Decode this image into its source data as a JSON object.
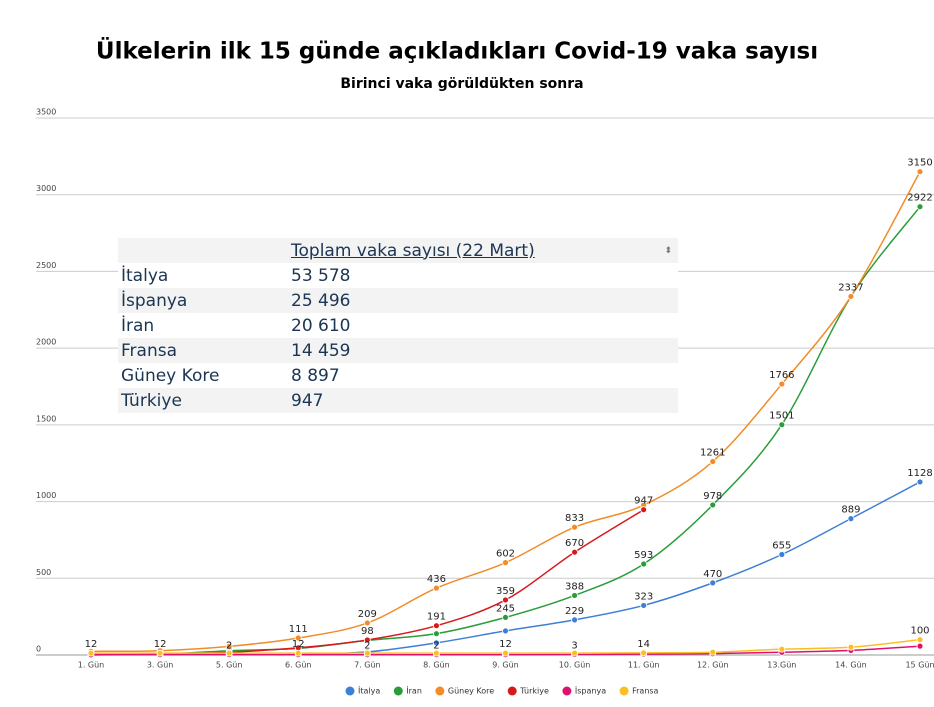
{
  "chart_data": {
    "type": "line",
    "title": "Ülkelerin ilk 15 günde açıkladıkları Covid-19 vaka sayısı",
    "subtitle": "Birinci vaka görüldükten sonra",
    "categories": [
      "1. Gün",
      "3. Gün",
      "5. Gün",
      "6. Gün",
      "7. Gün",
      "8. Gün",
      "9. Gün",
      "10. Gün",
      "11. Gün",
      "12. Gün",
      "13.Gün",
      "14. Gün",
      "15 Gün"
    ],
    "ylim": [
      0,
      3500
    ],
    "yticks": [
      0,
      500,
      1000,
      1500,
      2000,
      2500,
      3000,
      3500
    ],
    "grid": true,
    "legend": "bottom",
    "series": [
      {
        "name": "İtalya",
        "color": "#3e7fd6",
        "values": [
          3,
          3,
          3,
          3,
          20,
          79,
          157,
          229,
          323,
          470,
          655,
          889,
          1128
        ],
        "value_labels": [
          null,
          null,
          null,
          null,
          null,
          null,
          null,
          "229",
          "323",
          "470",
          "655",
          "889",
          "1128"
        ]
      },
      {
        "name": "İran",
        "color": "#2a9d3a",
        "values": [
          2,
          5,
          28,
          43,
          95,
          139,
          245,
          388,
          593,
          978,
          1501,
          2336,
          2922
        ],
        "value_labels": [
          null,
          null,
          null,
          null,
          null,
          null,
          "245",
          "388",
          "593",
          "978",
          "1501",
          null,
          "2922"
        ]
      },
      {
        "name": "Güney Kore",
        "color": "#f28c28",
        "values": [
          24,
          28,
          56,
          111,
          209,
          436,
          602,
          833,
          977,
          1261,
          1766,
          2337,
          3150
        ],
        "value_labels": [
          null,
          null,
          null,
          "111",
          "209",
          "436",
          "602",
          "833",
          null,
          "1261",
          "1766",
          "2337",
          "3150"
        ]
      },
      {
        "name": "Türkiye",
        "color": "#d7191c",
        "values": [
          1,
          5,
          18,
          47,
          98,
          191,
          359,
          670,
          947,
          null,
          null,
          null,
          null
        ],
        "value_labels": [
          null,
          null,
          null,
          null,
          "98",
          "191",
          "359",
          "670",
          "947",
          null,
          null,
          null,
          null
        ]
      },
      {
        "name": "İspanya",
        "color": "#e0116e",
        "values": [
          1,
          2,
          2,
          2,
          2,
          2,
          2,
          3,
          6,
          9,
          18,
          30,
          58
        ],
        "value_labels": [
          null,
          null,
          "2",
          null,
          "2",
          "2",
          null,
          "3",
          null,
          null,
          null,
          null,
          null
        ]
      },
      {
        "name": "Fransa",
        "color": "#fbbf24",
        "values": [
          12,
          12,
          12,
          12,
          12,
          12,
          12,
          12,
          14,
          18,
          38,
          51,
          100
        ],
        "value_labels": [
          "12",
          "12",
          null,
          "12",
          null,
          null,
          "12",
          null,
          "14",
          null,
          null,
          null,
          "100"
        ]
      }
    ]
  },
  "table": {
    "header": "Toplam vaka sayısı (22 Mart)",
    "rows": [
      [
        "İtalya",
        "53 578"
      ],
      [
        "İspanya",
        "25 496"
      ],
      [
        "İran",
        "20 610"
      ],
      [
        "Fransa",
        "14 459"
      ],
      [
        "Güney Kore",
        "8 897"
      ],
      [
        "Türkiye",
        "947"
      ]
    ]
  }
}
